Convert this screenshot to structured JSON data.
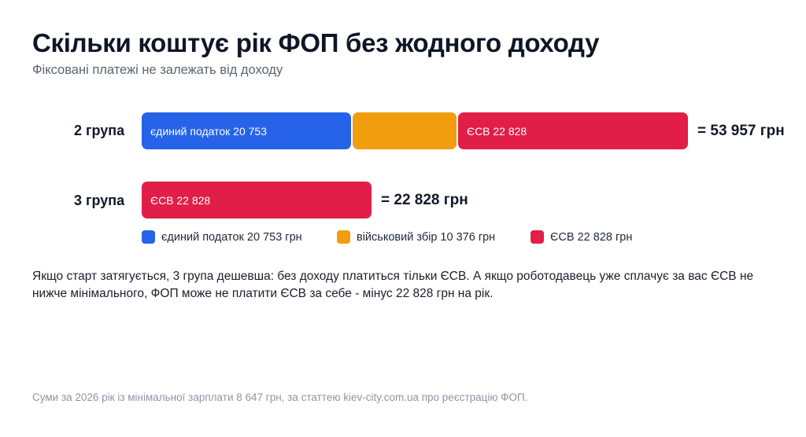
{
  "title": "Скільки коштує рік ФОП без жодного доходу",
  "subtitle": "Фіксовані платежі не залежать від доходу",
  "chart_data": {
    "type": "bar",
    "orientation": "horizontal",
    "stacked": true,
    "categories": [
      "2 група",
      "3 група"
    ],
    "series": [
      {
        "name": "єдиний податок 20 753 грн",
        "values": [
          20753,
          0
        ],
        "color": "#2663e8",
        "segment_label": "єдиний податок 20 753"
      },
      {
        "name": "військовий збір 10 376 грн",
        "values": [
          10376,
          0
        ],
        "color": "#f29d0e",
        "segment_label": ""
      },
      {
        "name": "ЄСВ 22 828 грн",
        "values": [
          22828,
          22828
        ],
        "color": "#e01e48",
        "segment_label": "ЄСВ 22 828"
      }
    ],
    "totals": [
      "= 53 957 грн",
      "= 22 828 грн"
    ],
    "legend": [
      {
        "label": "єдиний податок 20 753 грн",
        "color": "#2663e8"
      },
      {
        "label": "військовий збір 10 376 грн",
        "color": "#f29d0e"
      },
      {
        "label": "ЄСВ 22 828 грн",
        "color": "#e01e48"
      }
    ],
    "legend_position": "bottom",
    "grid": false
  },
  "note": "Якщо старт затягується, 3 група дешевша: без доходу платиться тільки ЄСВ. А якщо роботодавець уже сплачує за вас ЄСВ не нижче мінімального, ФОП може не платити ЄСВ за себе - мінус 22 828 грн на рік.",
  "footer": "Суми за 2026 рік із мінімальної зарплати 8 647 грн, за статтею kiev-city.com.ua про реєстрацію ФОП."
}
